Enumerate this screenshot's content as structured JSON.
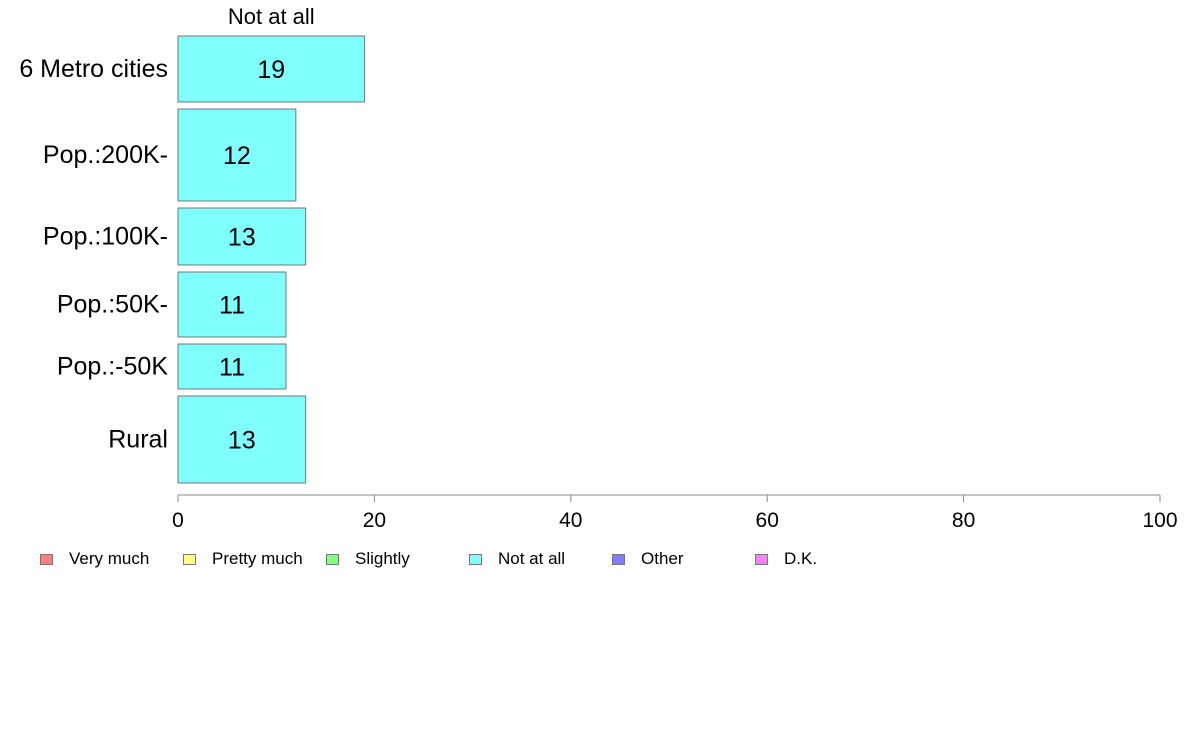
{
  "chart_data": {
    "type": "bar",
    "orientation": "horizontal",
    "stacked": true,
    "column_header": "Not at all",
    "categories": [
      "6 Metro cities",
      "Pop.:200K-",
      "Pop.:100K-",
      "Pop.:50K-",
      "Pop.:-50K",
      "Rural"
    ],
    "series": [
      {
        "name": "Very much",
        "values": [
          0,
          0,
          0,
          0,
          0,
          0
        ],
        "color": "#ff8080"
      },
      {
        "name": "Pretty much",
        "values": [
          0,
          0,
          0,
          0,
          0,
          0
        ],
        "color": "#ffff80"
      },
      {
        "name": "Slightly",
        "values": [
          0,
          0,
          0,
          0,
          0,
          0
        ],
        "color": "#80ff80"
      },
      {
        "name": "Not at all",
        "values": [
          19,
          12,
          13,
          11,
          11,
          13
        ],
        "color": "#80ffff"
      },
      {
        "name": "Other",
        "values": [
          0,
          0,
          0,
          0,
          0,
          0
        ],
        "color": "#8080ff"
      },
      {
        "name": "D.K.",
        "values": [
          0,
          0,
          0,
          0,
          0,
          0
        ],
        "color": "#ff80ff"
      }
    ],
    "bar_labels": [
      "19",
      "12",
      "13",
      "11",
      "11",
      "13"
    ],
    "xlim": [
      0,
      100
    ],
    "xticks": [
      0,
      20,
      40,
      60,
      80,
      100
    ],
    "xlabel": "",
    "ylabel": "",
    "grid": false,
    "legend_position": "bottom"
  }
}
